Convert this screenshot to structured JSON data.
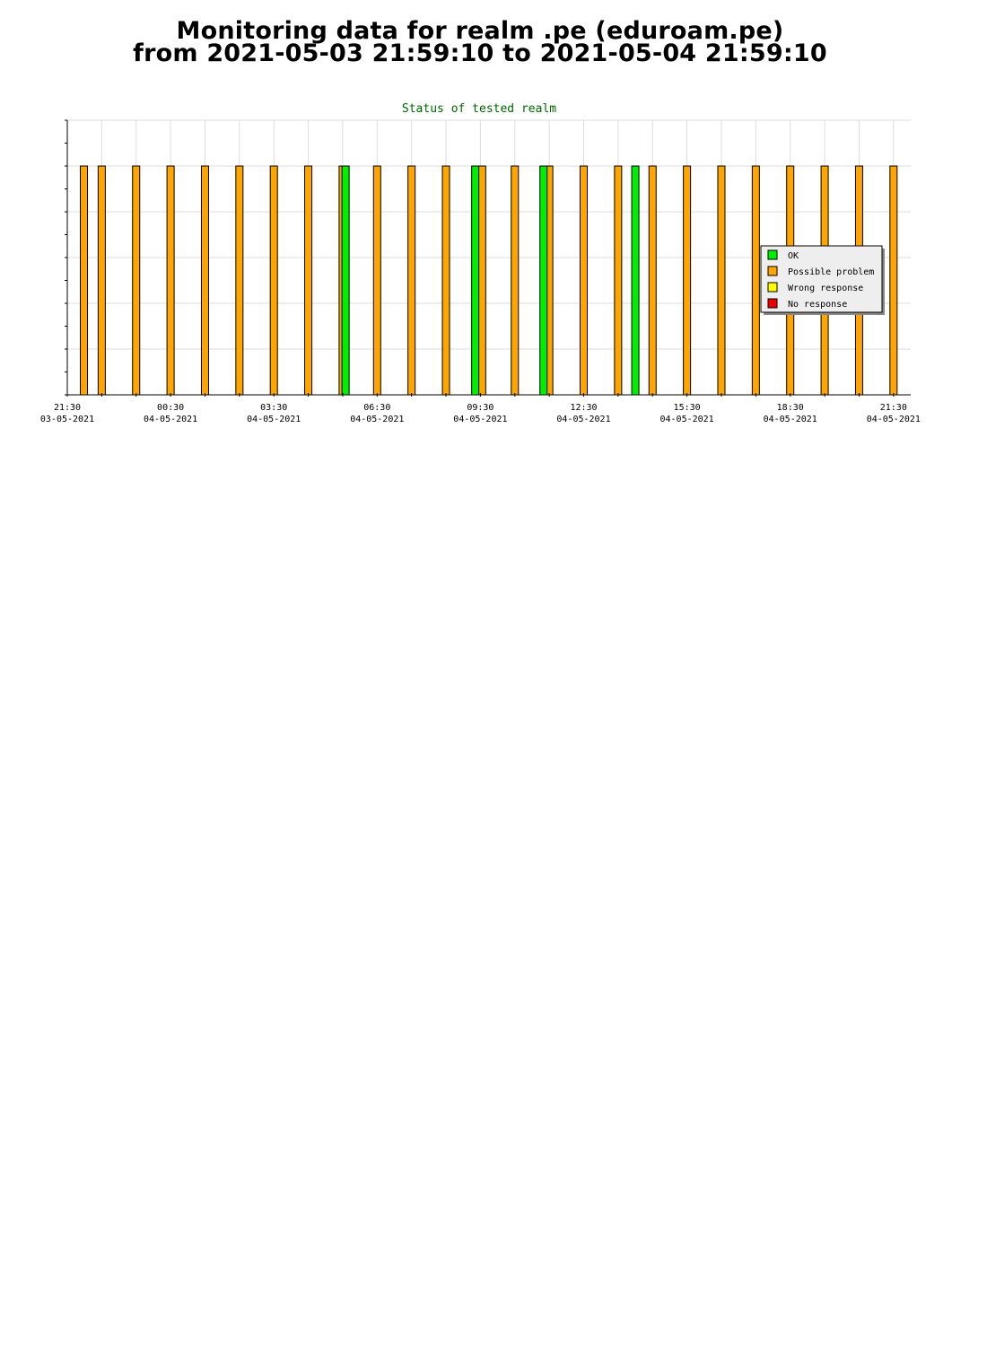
{
  "header": {
    "line1": "Monitoring data for realm .pe  (eduroam.pe)",
    "line2": "from 2021-05-03 21:59:10 to 2021-05-04 21:59:10"
  },
  "colors": {
    "ok": "#00ee00",
    "possible_problem": "#ffa500",
    "wrong_response": "#ffff00",
    "no_response": "#ee0000",
    "title": "#006600",
    "grid": "#dddddd",
    "legend_bg": "#eeeeee"
  },
  "chart_data": {
    "type": "bar",
    "title": "Status of tested realm",
    "xlabel": "",
    "ylabel": "",
    "grid": true,
    "legend_position": "right",
    "x_range": [
      "2021-05-03 21:30",
      "2021-05-04 22:00"
    ],
    "x_ticks": [
      {
        "time": "21:30",
        "date": "03-05-2021",
        "at": "2021-05-03 21:30"
      },
      {
        "time": "00:30",
        "date": "04-05-2021",
        "at": "2021-05-04 00:30"
      },
      {
        "time": "03:30",
        "date": "04-05-2021",
        "at": "2021-05-04 03:30"
      },
      {
        "time": "06:30",
        "date": "04-05-2021",
        "at": "2021-05-04 06:30"
      },
      {
        "time": "09:30",
        "date": "04-05-2021",
        "at": "2021-05-04 09:30"
      },
      {
        "time": "12:30",
        "date": "04-05-2021",
        "at": "2021-05-04 12:30"
      },
      {
        "time": "15:30",
        "date": "04-05-2021",
        "at": "2021-05-04 15:30"
      },
      {
        "time": "18:30",
        "date": "04-05-2021",
        "at": "2021-05-04 18:30"
      },
      {
        "time": "21:30",
        "date": "04-05-2021",
        "at": "2021-05-04 21:30"
      }
    ],
    "legend": [
      {
        "label": "OK",
        "color": "#00ee00"
      },
      {
        "label": "Possible problem",
        "color": "#ffa500"
      },
      {
        "label": "Wrong response",
        "color": "#ffff00"
      },
      {
        "label": "No response",
        "color": "#ee0000"
      }
    ],
    "series": [
      {
        "status": "Possible problem",
        "color": "#ffa500",
        "times": [
          "2021-05-03 21:59",
          "2021-05-03 22:30",
          "2021-05-03 23:30",
          "2021-05-04 00:30",
          "2021-05-04 01:30",
          "2021-05-04 02:30",
          "2021-05-04 03:30",
          "2021-05-04 04:30",
          "2021-05-04 05:30",
          "2021-05-04 06:30",
          "2021-05-04 07:30",
          "2021-05-04 08:30",
          "2021-05-04 09:33",
          "2021-05-04 10:30",
          "2021-05-04 11:30",
          "2021-05-04 12:30",
          "2021-05-04 13:30",
          "2021-05-04 14:30",
          "2021-05-04 15:30",
          "2021-05-04 16:30",
          "2021-05-04 17:30",
          "2021-05-04 18:30",
          "2021-05-04 19:30",
          "2021-05-04 20:30",
          "2021-05-04 21:30"
        ]
      },
      {
        "status": "OK",
        "color": "#00ee00",
        "times": [
          "2021-05-04 05:35",
          "2021-05-04 09:21",
          "2021-05-04 11:20",
          "2021-05-04 14:00"
        ]
      }
    ]
  }
}
